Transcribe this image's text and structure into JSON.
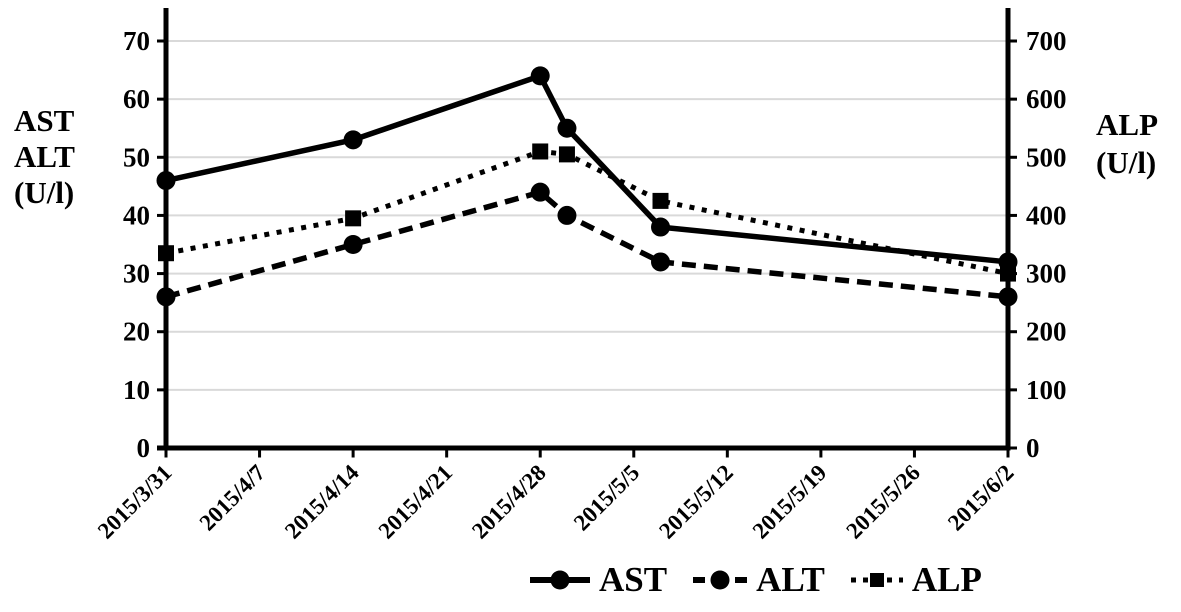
{
  "figure": {
    "background": "#ffffff",
    "left_axis_label_lines": [
      "AST",
      "ALT",
      "(U/l)"
    ],
    "right_axis_label_lines": [
      "ALP",
      "(U/l)"
    ]
  },
  "chart_data": {
    "type": "line",
    "title": "",
    "grid": "horizontal",
    "colors": {
      "series": "#000000",
      "grid": "#d9d9d9",
      "background": "#ffffff"
    },
    "x_axis": {
      "tick_labels": [
        "2015/3/31",
        "2015/4/7",
        "2015/4/14",
        "2015/4/21",
        "2015/4/28",
        "2015/5/5",
        "2015/5/12",
        "2015/5/19",
        "2015/5/26",
        "2015/6/2"
      ],
      "tick_day_offsets": [
        0,
        7,
        14,
        21,
        28,
        35,
        42,
        49,
        56,
        63
      ]
    },
    "left_axis": {
      "label": "AST ALT (U/l)",
      "range": [
        0,
        70
      ],
      "ticks": [
        0,
        10,
        20,
        30,
        40,
        50,
        60,
        70
      ]
    },
    "right_axis": {
      "label": "ALP (U/l)",
      "range": [
        0,
        700
      ],
      "ticks": [
        0,
        100,
        200,
        300,
        400,
        500,
        600,
        700
      ]
    },
    "series": [
      {
        "name": "AST",
        "axis": "left",
        "line_style": "solid",
        "marker": "circle",
        "x_dates": [
          "2015/3/31",
          "2015/4/14",
          "2015/4/28",
          "2015/4/30",
          "2015/5/7",
          "2015/6/2"
        ],
        "x_days": [
          0,
          14,
          28,
          30,
          37,
          63
        ],
        "values": [
          46,
          53,
          64,
          55,
          38,
          32
        ]
      },
      {
        "name": "ALT",
        "axis": "left",
        "line_style": "dashed",
        "marker": "circle",
        "x_dates": [
          "2015/3/31",
          "2015/4/14",
          "2015/4/28",
          "2015/4/30",
          "2015/5/7",
          "2015/6/2"
        ],
        "x_days": [
          0,
          14,
          28,
          30,
          37,
          63
        ],
        "values": [
          26,
          35,
          44,
          40,
          32,
          26
        ]
      },
      {
        "name": "ALP",
        "axis": "right",
        "line_style": "dotted",
        "marker": "square",
        "x_dates": [
          "2015/3/31",
          "2015/4/14",
          "2015/4/28",
          "2015/4/30",
          "2015/5/7",
          "2015/6/2"
        ],
        "x_days": [
          0,
          14,
          28,
          30,
          37,
          63
        ],
        "values": [
          335,
          395,
          510,
          505,
          425,
          300
        ]
      }
    ],
    "legend": {
      "position": "bottom",
      "entries": [
        {
          "label": "AST",
          "line_style": "solid",
          "marker": "circle"
        },
        {
          "label": "ALT",
          "line_style": "dashed",
          "marker": "circle"
        },
        {
          "label": "ALP",
          "line_style": "dotted",
          "marker": "square"
        }
      ]
    }
  }
}
